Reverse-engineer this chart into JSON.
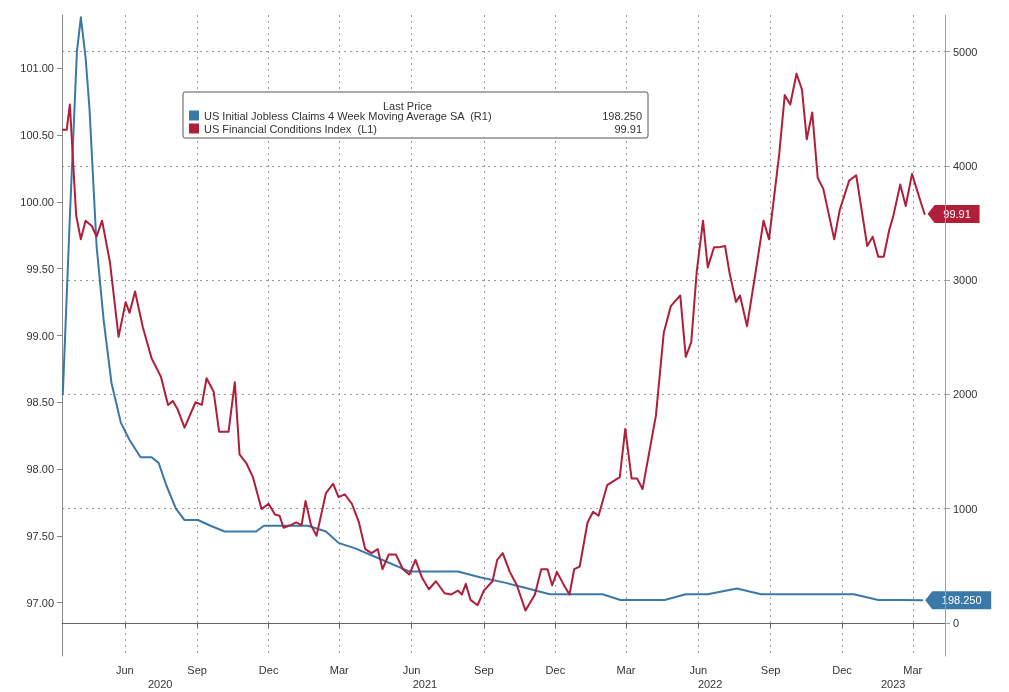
{
  "chart_data": {
    "type": "line",
    "legend_title": "Last Price",
    "legend": "top",
    "grid": true,
    "xlim": [
      "2020-03-13",
      "2023-04-11"
    ],
    "xticks": [
      {
        "value": "2020-06-01",
        "label": "Jun"
      },
      {
        "value": "2020-09-01",
        "label": "Sep"
      },
      {
        "value": "2020-12-01",
        "label": "Dec"
      },
      {
        "value": "2021-03-01",
        "label": "Mar"
      },
      {
        "value": "2021-06-01",
        "label": "Jun"
      },
      {
        "value": "2021-09-01",
        "label": "Sep"
      },
      {
        "value": "2021-12-01",
        "label": "Dec"
      },
      {
        "value": "2022-03-01",
        "label": "Mar"
      },
      {
        "value": "2022-06-01",
        "label": "Jun"
      },
      {
        "value": "2022-09-01",
        "label": "Sep"
      },
      {
        "value": "2022-12-01",
        "label": "Dec"
      },
      {
        "value": "2023-03-01",
        "label": "Mar"
      }
    ],
    "x2lim": [
      "2020-03-13",
      "2023-04-11"
    ],
    "x2ticks": [
      {
        "value": "2020-07-16",
        "label": "2020"
      },
      {
        "value": "2021-06-18",
        "label": "2021"
      },
      {
        "value": "2022-06-16",
        "label": "2022"
      },
      {
        "value": "2023-02-04",
        "label": "2023"
      }
    ],
    "ylim": [
      96.6,
      101.4
    ],
    "yticks": [
      {
        "value": 97,
        "label": "97.00"
      },
      {
        "value": 97.5,
        "label": "97.50"
      },
      {
        "value": 98,
        "label": "98.00"
      },
      {
        "value": 98.5,
        "label": "98.50"
      },
      {
        "value": 99,
        "label": "99.00"
      },
      {
        "value": 99.5,
        "label": "99.50"
      },
      {
        "value": 100,
        "label": "100.00"
      },
      {
        "value": 100.5,
        "label": "100.50"
      },
      {
        "value": 101,
        "label": "101.00"
      }
    ],
    "y2lim": [
      -290,
      5320
    ],
    "y2ticks": [
      0,
      1000,
      2000,
      3000,
      4000,
      5000
    ],
    "series": [
      {
        "name": "US Initial Jobless Claims 4 Week Moving Average SA  (R1)",
        "color": "#3a78a8",
        "axis": "y2",
        "x": [
          "2020-03-14",
          "2020-03-23",
          "2020-04-01",
          "2020-04-06",
          "2020-04-12",
          "2020-04-17",
          "2020-04-26",
          "2020-05-05",
          "2020-05-15",
          "2020-05-27",
          "2020-06-07",
          "2020-06-21",
          "2020-07-05",
          "2020-07-14",
          "2020-07-24",
          "2020-08-05",
          "2020-08-16",
          "2020-09-02",
          "2020-09-18",
          "2020-10-06",
          "2020-10-20",
          "2020-11-03",
          "2020-11-15",
          "2020-11-25",
          "2020-12-09",
          "2020-12-29",
          "2021-01-20",
          "2021-02-12",
          "2021-02-28",
          "2021-03-22",
          "2021-04-25",
          "2021-05-29",
          "2021-07-02",
          "2021-07-30",
          "2021-08-27",
          "2021-09-29",
          "2021-10-27",
          "2021-11-24",
          "2021-12-22",
          "2022-01-08",
          "2022-01-30",
          "2022-02-22",
          "2022-03-22",
          "2022-04-19",
          "2022-05-16",
          "2022-06-13",
          "2022-07-20",
          "2022-08-20",
          "2022-09-20",
          "2022-10-21",
          "2022-11-21",
          "2022-12-16",
          "2023-01-16",
          "2023-02-13",
          "2023-03-13"
        ],
        "values": [
          2000,
          3550,
          5000,
          5300,
          4950,
          4500,
          3300,
          2650,
          2100,
          1750,
          1600,
          1450,
          1450,
          1400,
          1200,
          1000,
          900,
          900,
          850,
          800,
          800,
          800,
          800,
          850,
          850,
          850,
          850,
          800,
          700,
          650,
          550,
          450,
          450,
          450,
          400,
          350,
          300,
          250,
          250,
          250,
          250,
          200,
          200,
          200,
          250,
          250,
          300,
          250,
          250,
          250,
          250,
          250,
          200,
          200,
          198.25
        ],
        "value_labels": [
          null,
          null,
          null,
          null,
          null,
          null,
          null,
          null,
          null,
          null,
          null,
          null,
          null,
          null,
          null,
          null,
          null,
          null,
          null,
          null,
          null,
          null,
          null,
          null,
          null,
          null,
          null,
          null,
          null,
          null,
          null,
          null,
          null,
          null,
          null,
          null,
          null,
          null,
          null,
          null,
          null,
          null,
          null,
          null,
          null,
          null,
          null,
          null,
          null,
          null,
          null,
          null,
          null,
          null,
          "198.250"
        ]
      },
      {
        "name": "US Financial Conditions Index  (L1)",
        "color": "#b01f3a",
        "x": [
          "2020-03-14",
          "2020-03-19",
          "2020-03-23",
          "2020-03-31",
          "2020-04-06",
          "2020-04-12",
          "2020-04-20",
          "2020-04-26",
          "2020-05-03",
          "2020-05-13",
          "2020-05-24",
          "2020-06-02",
          "2020-06-07",
          "2020-06-14",
          "2020-06-24",
          "2020-07-05",
          "2020-07-17",
          "2020-07-26",
          "2020-08-01",
          "2020-08-07",
          "2020-08-16",
          "2020-08-30",
          "2020-09-07",
          "2020-09-13",
          "2020-09-22",
          "2020-09-29",
          "2020-10-11",
          "2020-10-19",
          "2020-10-25",
          "2020-11-03",
          "2020-11-11",
          "2020-11-22",
          "2020-12-01",
          "2020-12-09",
          "2020-12-15",
          "2020-12-20",
          "2020-12-29",
          "2021-01-05",
          "2021-01-12",
          "2021-01-17",
          "2021-01-24",
          "2021-01-31",
          "2021-02-12",
          "2021-02-21",
          "2021-02-28",
          "2021-03-08",
          "2021-03-17",
          "2021-03-26",
          "2021-04-03",
          "2021-04-11",
          "2021-04-19",
          "2021-04-25",
          "2021-05-03",
          "2021-05-12",
          "2021-05-21",
          "2021-05-29",
          "2021-06-06",
          "2021-06-14",
          "2021-06-23",
          "2021-07-02",
          "2021-07-13",
          "2021-07-21",
          "2021-07-30",
          "2021-08-04",
          "2021-08-09",
          "2021-08-15",
          "2021-08-24",
          "2021-09-01",
          "2021-09-12",
          "2021-09-18",
          "2021-09-25",
          "2021-10-04",
          "2021-10-13",
          "2021-10-24",
          "2021-11-05",
          "2021-11-13",
          "2021-11-21",
          "2021-11-27",
          "2021-12-03",
          "2021-12-11",
          "2021-12-19",
          "2021-12-25",
          "2022-01-01",
          "2022-01-11",
          "2022-01-18",
          "2022-01-25",
          "2022-02-05",
          "2022-02-13",
          "2022-02-21",
          "2022-02-28",
          "2022-03-08",
          "2022-03-15",
          "2022-03-22",
          "2022-04-08",
          "2022-04-18",
          "2022-04-27",
          "2022-05-09",
          "2022-05-16",
          "2022-05-23",
          "2022-05-30",
          "2022-06-07",
          "2022-06-13",
          "2022-06-21",
          "2022-06-27",
          "2022-07-05",
          "2022-07-11",
          "2022-07-19",
          "2022-07-24",
          "2022-08-02",
          "2022-08-12",
          "2022-08-23",
          "2022-08-30",
          "2022-09-12",
          "2022-09-19",
          "2022-09-26",
          "2022-10-04",
          "2022-10-11",
          "2022-10-17",
          "2022-10-24",
          "2022-10-31",
          "2022-11-07",
          "2022-11-21",
          "2022-11-28",
          "2022-12-10",
          "2022-12-19",
          "2023-01-02",
          "2023-01-09",
          "2023-01-16",
          "2023-01-23",
          "2023-01-30",
          "2023-02-04",
          "2023-02-13",
          "2023-02-20",
          "2023-02-28",
          "2023-03-10",
          "2023-03-16"
        ],
        "values": [
          100.54,
          100.54,
          100.73,
          99.9,
          99.72,
          99.86,
          99.82,
          99.74,
          99.86,
          99.55,
          98.99,
          99.25,
          99.17,
          99.33,
          99.06,
          98.83,
          98.69,
          98.48,
          98.51,
          98.45,
          98.31,
          98.5,
          98.48,
          98.68,
          98.58,
          98.28,
          98.28,
          98.65,
          98.11,
          98.04,
          97.94,
          97.7,
          97.74,
          97.66,
          97.65,
          97.56,
          97.58,
          97.6,
          97.58,
          97.76,
          97.58,
          97.5,
          97.82,
          97.89,
          97.79,
          97.81,
          97.74,
          97.6,
          97.4,
          97.37,
          97.4,
          97.25,
          97.36,
          97.36,
          97.25,
          97.21,
          97.32,
          97.19,
          97.1,
          97.16,
          97.07,
          97.06,
          97.09,
          97.06,
          97.14,
          97.02,
          96.98,
          97.09,
          97.16,
          97.32,
          97.37,
          97.23,
          97.13,
          96.94,
          97.06,
          97.25,
          97.25,
          97.13,
          97.23,
          97.14,
          97.06,
          97.25,
          97.27,
          97.6,
          97.68,
          97.65,
          97.88,
          97.91,
          97.94,
          98.3,
          97.93,
          97.93,
          97.85,
          98.4,
          99.02,
          99.22,
          99.3,
          98.84,
          98.95,
          99.48,
          99.86,
          99.51,
          99.66,
          99.66,
          99.67,
          99.46,
          99.25,
          99.3,
          99.07,
          99.44,
          99.86,
          99.72,
          100.36,
          100.8,
          100.73,
          100.96,
          100.84,
          100.47,
          100.67,
          100.18,
          100.1,
          99.72,
          99.94,
          100.16,
          100.2,
          99.67,
          99.74,
          99.59,
          99.59,
          99.79,
          99.89,
          100.13,
          99.97,
          100.21,
          100.02,
          99.91
        ],
        "value_labels": [
          null,
          null,
          null,
          null,
          null,
          null,
          null,
          null,
          null,
          null,
          null,
          null,
          null,
          null,
          null,
          null,
          null,
          null,
          null,
          null,
          null,
          null,
          null,
          null,
          null,
          null,
          null,
          null,
          null,
          null,
          null,
          null,
          null,
          null,
          null,
          null,
          null,
          null,
          null,
          null,
          null,
          null,
          null,
          null,
          null,
          null,
          null,
          null,
          null,
          null,
          null,
          null,
          null,
          null,
          null,
          null,
          null,
          null,
          null,
          null,
          null,
          null,
          null,
          null,
          null,
          null,
          null,
          null,
          null,
          null,
          null,
          null,
          null,
          null,
          null,
          null,
          null,
          null,
          null,
          null,
          null,
          null,
          null,
          null,
          null,
          null,
          null,
          null,
          null,
          null,
          null,
          null,
          null,
          null,
          null,
          null,
          null,
          null,
          null,
          null,
          null,
          null,
          null,
          null,
          null,
          null,
          null,
          null,
          null,
          null,
          null,
          null,
          null,
          null,
          null,
          null,
          null,
          null,
          null,
          null,
          null,
          null,
          null,
          null,
          null,
          null,
          null,
          null,
          null,
          null,
          null,
          null,
          null,
          null,
          null,
          "99.91"
        ]
      }
    ]
  }
}
